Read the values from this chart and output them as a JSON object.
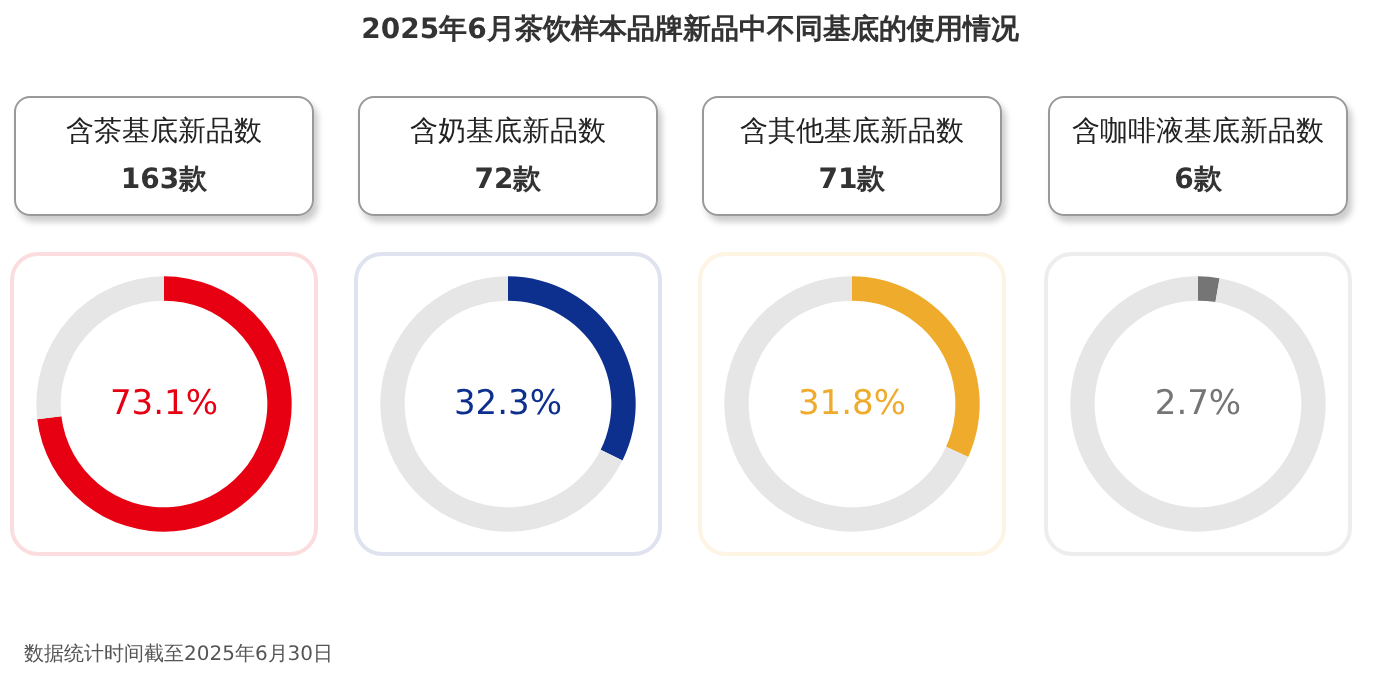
{
  "chart_data": [
    {
      "type": "other",
      "title": "2025年6月茶饮样本品牌新品中不同基底的使用情况",
      "annotations": [
        "数据统计时间截至2025年6月30日"
      ]
    },
    {
      "type": "donut",
      "title": "含茶基底新品数",
      "subtitle": "163款",
      "categories": [
        null,
        null
      ],
      "values": [
        73.1,
        26.9
      ],
      "colors": [
        "#e60012",
        "#e6e6e6"
      ],
      "annotations": [
        "73.1%"
      ]
    },
    {
      "type": "donut",
      "title": "含奶基底新品数",
      "subtitle": "72款",
      "categories": [
        null,
        null
      ],
      "values": [
        32.3,
        67.7
      ],
      "colors": [
        "#0d2f8e",
        "#e6e6e6"
      ],
      "annotations": [
        "32.3%"
      ]
    },
    {
      "type": "donut",
      "title": "含其他基底新品数",
      "subtitle": "71款",
      "categories": [
        null,
        null
      ],
      "values": [
        31.8,
        68.2
      ],
      "colors": [
        "#efab2b",
        "#e6e6e6"
      ],
      "annotations": [
        "31.8%"
      ]
    },
    {
      "type": "donut",
      "title": "含咖啡液基底新品数",
      "subtitle": "6款",
      "categories": [
        null,
        null
      ],
      "values": [
        2.7,
        97.3
      ],
      "colors": [
        "#757575",
        "#e6e6e6"
      ],
      "annotations": [
        "2.7%"
      ]
    }
  ]
}
